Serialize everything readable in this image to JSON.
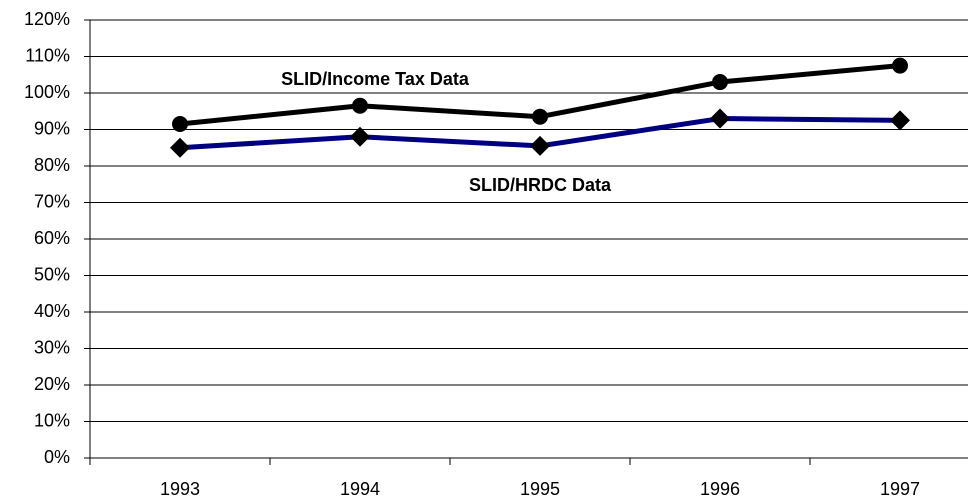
{
  "chart_data": {
    "type": "line",
    "categories": [
      "1993",
      "1994",
      "1995",
      "1996",
      "1997"
    ],
    "series": [
      {
        "name": "SLID/Income Tax Data",
        "color": "#000000",
        "marker": "circle",
        "marker_color": "#000000",
        "values": [
          91.5,
          96.5,
          93.5,
          103,
          107.5
        ]
      },
      {
        "name": "SLID/HRDC Data",
        "color": "#000080",
        "marker": "diamond",
        "marker_color": "#000000",
        "values": [
          85,
          88,
          85.5,
          93,
          92.5
        ]
      }
    ],
    "ylim": [
      0,
      120
    ],
    "yticks": [
      {
        "value": 0,
        "label": "0%"
      },
      {
        "value": 10,
        "label": "10%"
      },
      {
        "value": 20,
        "label": "20%"
      },
      {
        "value": 30,
        "label": "30%"
      },
      {
        "value": 40,
        "label": "40%"
      },
      {
        "value": 50,
        "label": "50%"
      },
      {
        "value": 60,
        "label": "60%"
      },
      {
        "value": 70,
        "label": "70%"
      },
      {
        "value": 80,
        "label": "80%"
      },
      {
        "value": 90,
        "label": "90%"
      },
      {
        "value": 100,
        "label": "100%"
      },
      {
        "value": 110,
        "label": "110%"
      },
      {
        "value": 120,
        "label": "120%"
      }
    ],
    "grid": true
  }
}
